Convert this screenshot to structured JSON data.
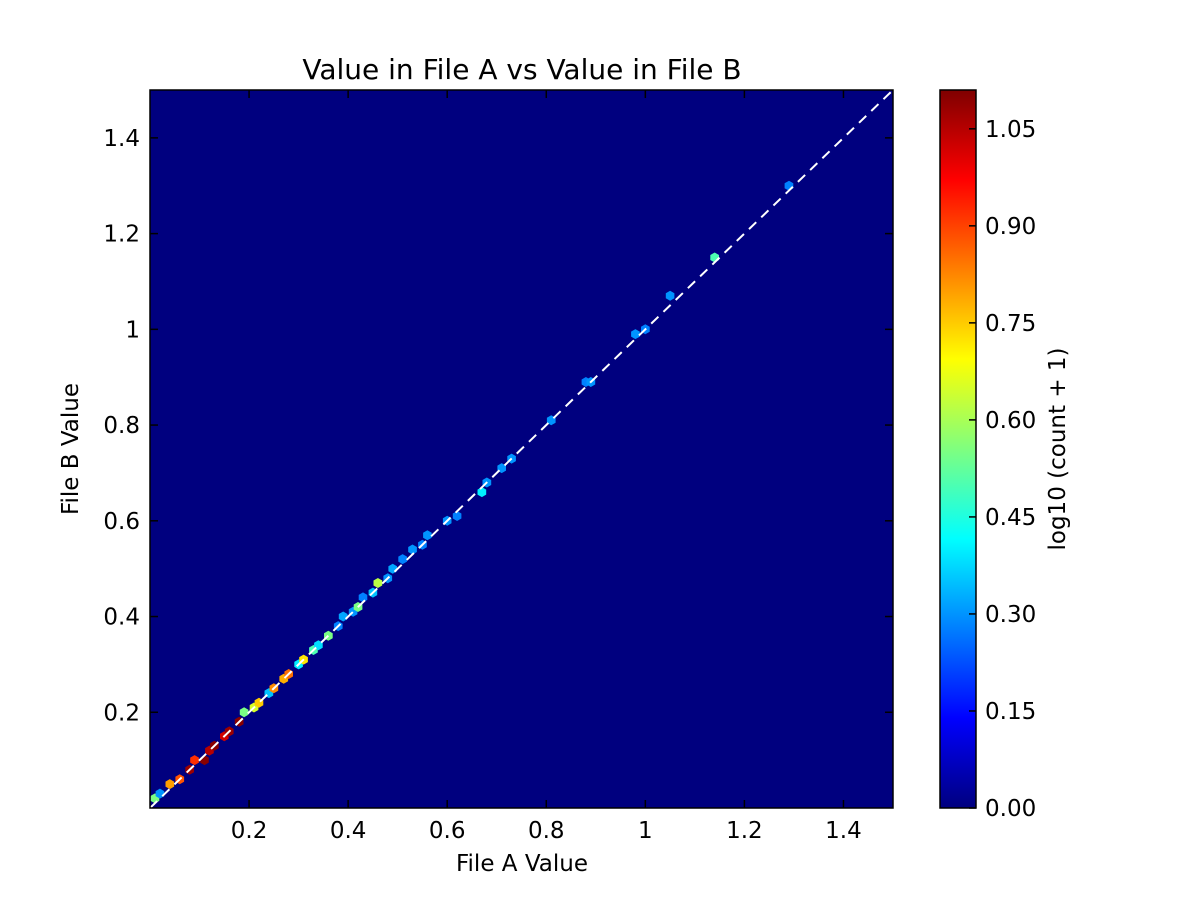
{
  "chart_data": {
    "type": "heatmap",
    "title": "Value in File A vs Value in File B",
    "xlabel": "File A Value",
    "ylabel": "File B Value",
    "xlim": [
      0.0,
      1.5
    ],
    "ylim": [
      0.0,
      1.5
    ],
    "x_ticks": [
      {
        "value": 0.2,
        "label": "0.2"
      },
      {
        "value": 0.4,
        "label": "0.4"
      },
      {
        "value": 0.6,
        "label": "0.6"
      },
      {
        "value": 0.8,
        "label": "0.8"
      },
      {
        "value": 1.0,
        "label": "1"
      },
      {
        "value": 1.2,
        "label": "1.2"
      },
      {
        "value": 1.4,
        "label": "1.4"
      }
    ],
    "y_ticks": [
      {
        "value": 0.2,
        "label": "0.2"
      },
      {
        "value": 0.4,
        "label": "0.4"
      },
      {
        "value": 0.6,
        "label": "0.6"
      },
      {
        "value": 0.8,
        "label": "0.8"
      },
      {
        "value": 1.0,
        "label": "1"
      },
      {
        "value": 1.2,
        "label": "1.2"
      },
      {
        "value": 1.4,
        "label": "1.4"
      }
    ],
    "colorbar": {
      "label": "log10 (count + 1)",
      "colormap": "jet",
      "range": [
        0.0,
        1.11
      ],
      "ticks": [
        {
          "value": 0.0,
          "label": "0.00"
        },
        {
          "value": 0.15,
          "label": "0.15"
        },
        {
          "value": 0.3,
          "label": "0.30"
        },
        {
          "value": 0.45,
          "label": "0.45"
        },
        {
          "value": 0.6,
          "label": "0.60"
        },
        {
          "value": 0.75,
          "label": "0.75"
        },
        {
          "value": 0.9,
          "label": "0.90"
        },
        {
          "value": 1.05,
          "label": "1.05"
        }
      ],
      "stops": [
        "#00007f",
        "#0000ff",
        "#007fff",
        "#00ffff",
        "#7fff7f",
        "#ffff00",
        "#ff7f00",
        "#ff0000",
        "#7f0000"
      ]
    },
    "reference_line": {
      "style": "dashed",
      "color": "#ffffff",
      "from": [
        0.0,
        0.0
      ],
      "to": [
        1.5,
        1.5
      ]
    },
    "background_color": "#00007f",
    "points": [
      {
        "x": 0.01,
        "y": 0.02,
        "v": 0.55
      },
      {
        "x": 0.02,
        "y": 0.03,
        "v": 0.3
      },
      {
        "x": 0.04,
        "y": 0.05,
        "v": 0.8
      },
      {
        "x": 0.06,
        "y": 0.06,
        "v": 0.88
      },
      {
        "x": 0.08,
        "y": 0.08,
        "v": 1.08
      },
      {
        "x": 0.09,
        "y": 0.1,
        "v": 0.92
      },
      {
        "x": 0.11,
        "y": 0.1,
        "v": 1.1
      },
      {
        "x": 0.12,
        "y": 0.12,
        "v": 1.05
      },
      {
        "x": 0.13,
        "y": 0.13,
        "v": 1.1
      },
      {
        "x": 0.15,
        "y": 0.15,
        "v": 1.02
      },
      {
        "x": 0.16,
        "y": 0.16,
        "v": 1.08
      },
      {
        "x": 0.18,
        "y": 0.18,
        "v": 1.1
      },
      {
        "x": 0.19,
        "y": 0.2,
        "v": 0.55
      },
      {
        "x": 0.21,
        "y": 0.21,
        "v": 0.65
      },
      {
        "x": 0.22,
        "y": 0.22,
        "v": 0.75
      },
      {
        "x": 0.24,
        "y": 0.24,
        "v": 0.35
      },
      {
        "x": 0.25,
        "y": 0.25,
        "v": 0.82
      },
      {
        "x": 0.27,
        "y": 0.27,
        "v": 0.78
      },
      {
        "x": 0.28,
        "y": 0.28,
        "v": 0.85
      },
      {
        "x": 0.3,
        "y": 0.3,
        "v": 0.4
      },
      {
        "x": 0.31,
        "y": 0.31,
        "v": 0.72
      },
      {
        "x": 0.33,
        "y": 0.33,
        "v": 0.5
      },
      {
        "x": 0.34,
        "y": 0.34,
        "v": 0.38
      },
      {
        "x": 0.36,
        "y": 0.36,
        "v": 0.55
      },
      {
        "x": 0.38,
        "y": 0.38,
        "v": 0.28
      },
      {
        "x": 0.39,
        "y": 0.4,
        "v": 0.32
      },
      {
        "x": 0.41,
        "y": 0.41,
        "v": 0.3
      },
      {
        "x": 0.42,
        "y": 0.42,
        "v": 0.55
      },
      {
        "x": 0.43,
        "y": 0.44,
        "v": 0.28
      },
      {
        "x": 0.45,
        "y": 0.45,
        "v": 0.35
      },
      {
        "x": 0.46,
        "y": 0.47,
        "v": 0.62
      },
      {
        "x": 0.48,
        "y": 0.48,
        "v": 0.3
      },
      {
        "x": 0.49,
        "y": 0.5,
        "v": 0.32
      },
      {
        "x": 0.51,
        "y": 0.52,
        "v": 0.28
      },
      {
        "x": 0.53,
        "y": 0.54,
        "v": 0.3
      },
      {
        "x": 0.55,
        "y": 0.55,
        "v": 0.28
      },
      {
        "x": 0.56,
        "y": 0.57,
        "v": 0.3
      },
      {
        "x": 0.6,
        "y": 0.6,
        "v": 0.3
      },
      {
        "x": 0.62,
        "y": 0.61,
        "v": 0.28
      },
      {
        "x": 0.67,
        "y": 0.66,
        "v": 0.4
      },
      {
        "x": 0.68,
        "y": 0.68,
        "v": 0.3
      },
      {
        "x": 0.71,
        "y": 0.71,
        "v": 0.3
      },
      {
        "x": 0.73,
        "y": 0.73,
        "v": 0.3
      },
      {
        "x": 0.81,
        "y": 0.81,
        "v": 0.3
      },
      {
        "x": 0.88,
        "y": 0.89,
        "v": 0.28
      },
      {
        "x": 0.89,
        "y": 0.89,
        "v": 0.3
      },
      {
        "x": 0.98,
        "y": 0.99,
        "v": 0.3
      },
      {
        "x": 1.0,
        "y": 1.0,
        "v": 0.28
      },
      {
        "x": 1.05,
        "y": 1.07,
        "v": 0.3
      },
      {
        "x": 1.14,
        "y": 1.15,
        "v": 0.5
      },
      {
        "x": 1.29,
        "y": 1.3,
        "v": 0.28
      }
    ]
  }
}
